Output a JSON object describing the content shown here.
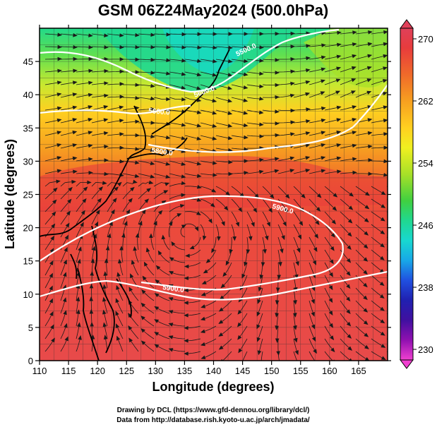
{
  "title": "GSM 06Z24May2024 (500.0hPa)",
  "axes": {
    "xlabel": "Longitude (degrees)",
    "ylabel": "Latitude  (degrees)",
    "x_ticks": [
      "110",
      "115",
      "120",
      "125",
      "130",
      "135",
      "140",
      "145",
      "150",
      "155",
      "160",
      "165"
    ],
    "y_ticks": [
      "0",
      "5",
      "10",
      "15",
      "20",
      "25",
      "30",
      "35",
      "40",
      "45"
    ]
  },
  "contour_labels": [
    "5500.0",
    "5600.0",
    "5600.0",
    "5700.0",
    "5800.0",
    "5900.0",
    "5900.0"
  ],
  "colorbar": {
    "ticks": [
      "270",
      "262",
      "254",
      "246",
      "238",
      "230"
    ],
    "colors": [
      "#e0405a",
      "#e83c3c",
      "#f06a2a",
      "#f7a020",
      "#ffd020",
      "#f0f020",
      "#a8e028",
      "#40d040",
      "#20d890",
      "#18d8d0",
      "#18a8e8",
      "#2050e0",
      "#2020b0",
      "#4010a0",
      "#9010b0",
      "#d020c0",
      "#f040d0"
    ]
  },
  "credits": {
    "line1": "Drawing by DCL (https://www.gfd-dennou.org/library/dcl/)",
    "line2": "Data from http://database.rish.kyoto-u.ac.jp/arch/jmadata/"
  }
}
